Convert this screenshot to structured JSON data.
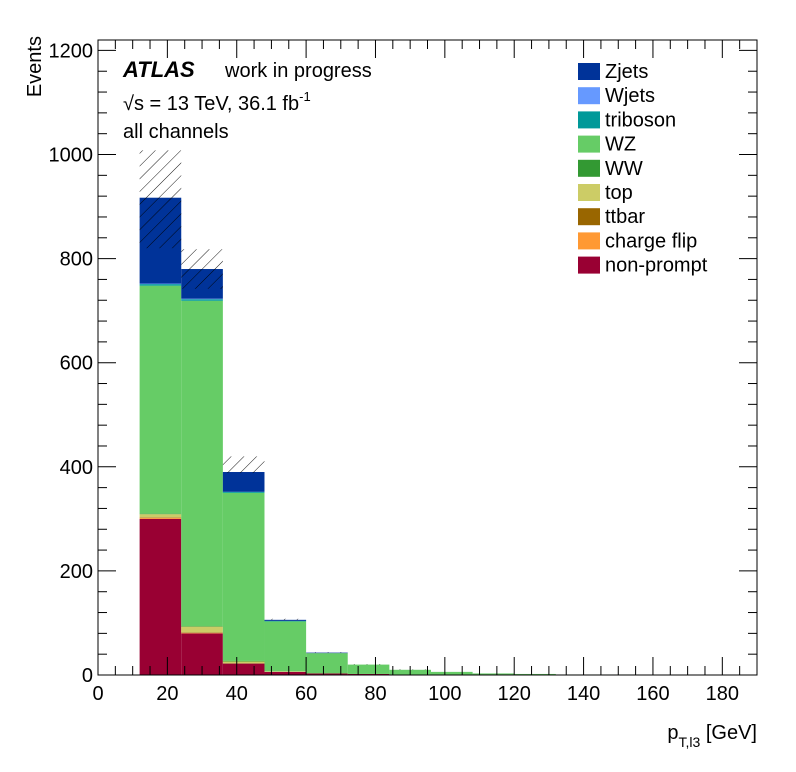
{
  "chart_data": {
    "type": "bar",
    "stacked": true,
    "experiment": "ATLAS",
    "status_label": "work in progress",
    "energy_label": "√s = 13 TeV, 36.1 fb",
    "lumi_exponent": "-1",
    "region_label": "all channels",
    "ylabel": "Events",
    "xlabel_main": "p",
    "xlabel_sub": "T,l3",
    "xlabel_unit": "[GeV]",
    "xlim": [
      0,
      190
    ],
    "ylim": [
      0,
      1220
    ],
    "xticks": [
      0,
      20,
      40,
      60,
      80,
      100,
      120,
      140,
      160,
      180
    ],
    "yticks": [
      0,
      200,
      400,
      600,
      800,
      1000,
      1200
    ],
    "legend_position": "top-right",
    "bin_edges": [
      12,
      24,
      36,
      48,
      60,
      72,
      84,
      96,
      108,
      120,
      132,
      144,
      156,
      168,
      180
    ],
    "series": [
      {
        "name": "non-prompt",
        "color": "#990033",
        "values": [
          300,
          80,
          22,
          6,
          3,
          2,
          1,
          1,
          0,
          0,
          0,
          0,
          0,
          0
        ]
      },
      {
        "name": "charge flip",
        "color": "#ff9933",
        "values": [
          2,
          1,
          0,
          0,
          0,
          0,
          0,
          0,
          0,
          0,
          0,
          0,
          0,
          0
        ]
      },
      {
        "name": "ttbar",
        "color": "#996600",
        "values": [
          1,
          1,
          0,
          0,
          0,
          0,
          0,
          0,
          0,
          0,
          0,
          0,
          0,
          0
        ]
      },
      {
        "name": "top",
        "color": "#cccc66",
        "values": [
          6,
          11,
          4,
          1,
          0,
          0,
          0,
          0,
          0,
          0,
          0,
          0,
          0,
          0
        ]
      },
      {
        "name": "WW",
        "color": "#339933",
        "values": [
          1,
          1,
          1,
          0,
          0,
          0,
          0,
          0,
          0,
          0,
          0,
          0,
          0,
          0
        ]
      },
      {
        "name": "WZ",
        "color": "#66cc66",
        "values": [
          438,
          625,
          323,
          96,
          39,
          18,
          9,
          5,
          3,
          2,
          1,
          1,
          0,
          0
        ]
      },
      {
        "name": "triboson",
        "color": "#009999",
        "values": [
          3,
          3,
          2,
          1,
          0,
          0,
          0,
          0,
          0,
          0,
          0,
          0,
          0,
          0
        ]
      },
      {
        "name": "Wjets",
        "color": "#6699ff",
        "values": [
          1,
          1,
          0,
          0,
          0,
          0,
          0,
          0,
          0,
          0,
          0,
          0,
          0,
          0
        ]
      },
      {
        "name": "Zjets",
        "color": "#003399",
        "values": [
          165,
          57,
          38,
          2,
          1,
          0,
          0,
          0,
          0,
          0,
          0,
          0,
          0,
          0
        ]
      }
    ],
    "uncertainty_band": {
      "up": [
        1008,
        818,
        420,
        108,
        44,
        21,
        11,
        6,
        3,
        2,
        1,
        1,
        0,
        0
      ],
      "down": [
        820,
        742,
        388,
        106,
        43,
        20,
        10,
        6,
        3,
        2,
        1,
        1,
        0,
        0
      ]
    }
  }
}
